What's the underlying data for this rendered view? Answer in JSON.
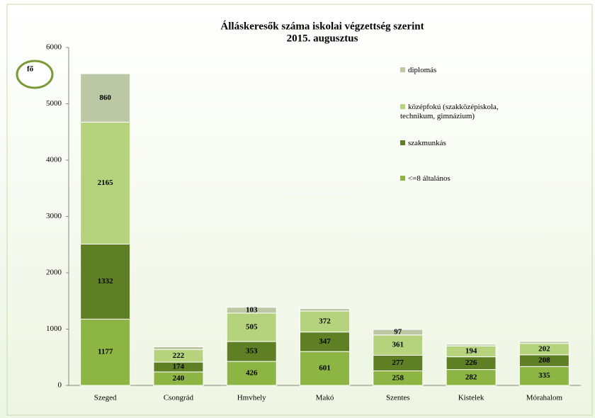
{
  "chart_data": {
    "type": "stacked_bar",
    "title": "Álláskeresők száma iskolai végzettség szerint",
    "subtitle": "2015. augusztus",
    "unit_label": "fő",
    "categories": [
      "Szeged",
      "Csongrád",
      "Hmvhely",
      "Makó",
      "Szentes",
      "Kistelek",
      "Mórahalom"
    ],
    "series": [
      {
        "name": "<=8 általános",
        "color": "#8db544",
        "values": [
          1177,
          240,
          426,
          601,
          258,
          282,
          335
        ]
      },
      {
        "name": "szakmunkás",
        "color": "#5f7f25",
        "values": [
          1332,
          174,
          353,
          347,
          277,
          226,
          208
        ]
      },
      {
        "name": "középfokú (szakközépiskola, technikum, gimnázium)",
        "color": "#b4d37c",
        "values": [
          2165,
          222,
          505,
          372,
          361,
          194,
          202
        ]
      },
      {
        "name": "diplomás",
        "color": "#bcc8a3",
        "values": [
          860,
          50,
          103,
          45,
          97,
          30,
          35
        ],
        "value_labels": [
          "860",
          null,
          "103",
          null,
          "97",
          null,
          null
        ]
      }
    ],
    "ylim": [
      0,
      6000
    ],
    "yticks": [
      0,
      1000,
      2000,
      3000,
      4000,
      5000,
      6000
    ],
    "grid": false
  }
}
